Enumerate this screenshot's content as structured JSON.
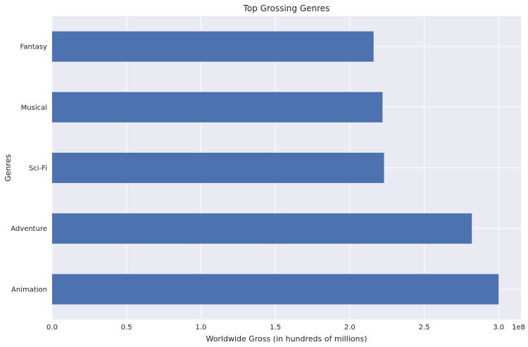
{
  "chart_data": {
    "type": "bar",
    "orientation": "horizontal",
    "title": "Top Grossing Genres",
    "xlabel": "Worldwide Gross (in hundreds of millions)",
    "ylabel": "Genres",
    "x_offset_label": "1e8",
    "categories": [
      "Animation",
      "Adventure",
      "Sci-Fi",
      "Musical",
      "Fantasy"
    ],
    "values": [
      300000000,
      282000000,
      223000000,
      222000000,
      216000000
    ],
    "xlim": [
      0,
      315000000
    ],
    "xticks": [
      0,
      50000000,
      100000000,
      150000000,
      200000000,
      250000000,
      300000000
    ],
    "xtick_labels": [
      "0.0",
      "0.5",
      "1.0",
      "1.5",
      "2.0",
      "2.5",
      "3.0"
    ],
    "grid": true,
    "colors": {
      "bar": "#4c72b0",
      "plot_background": "#eaeaf2",
      "grid": "#ffffff"
    }
  }
}
